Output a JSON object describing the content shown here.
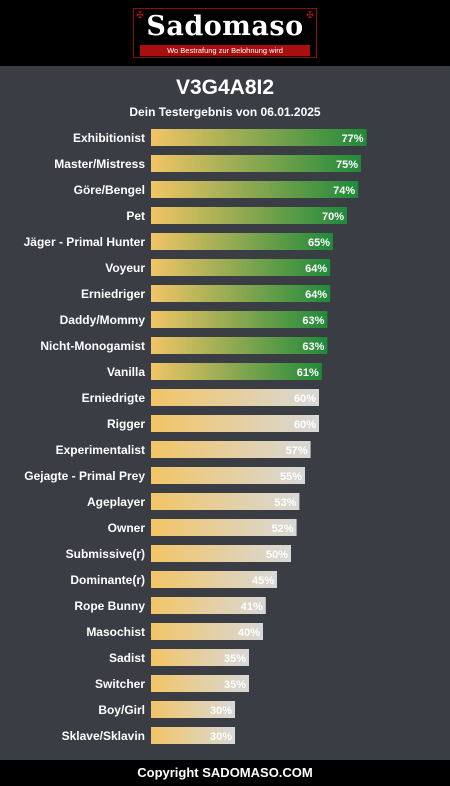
{
  "header": {
    "logo_text": "Sadomaso",
    "logo_tagline": "Wo Bestrafung zur Belohnung wird",
    "logo_icon": "cross-ornament-icon"
  },
  "title": "V3G4A8I2",
  "subtitle": "Dein Testergebnis von 06.01.2025",
  "footer": {
    "text": "Copyright SADOMASO.COM"
  },
  "colors": {
    "background": "#3a3d43",
    "bar_start": "#f2c566",
    "high_end": "#1f8a3a",
    "low_end": "#d8d8d8",
    "label_high": "#ffffff",
    "label_low": "#ffffff"
  },
  "chart_data": {
    "type": "bar",
    "orientation": "horizontal",
    "value_suffix": "%",
    "xlim": [
      0,
      100
    ],
    "grid": false,
    "highlight_threshold": 61,
    "categories": [
      "Exhibitionist",
      "Master/Mistress",
      "Göre/Bengel",
      "Pet",
      "Jäger - Primal Hunter",
      "Voyeur",
      "Erniedriger",
      "Daddy/Mommy",
      "Nicht-Monogamist",
      "Vanilla",
      "Erniedrigte",
      "Rigger",
      "Experimentalist",
      "Gejagte - Primal Prey",
      "Ageplayer",
      "Owner",
      "Submissive(r)",
      "Dominante(r)",
      "Rope Bunny",
      "Masochist",
      "Sadist",
      "Switcher",
      "Boy/Girl",
      "Sklave/Sklavin"
    ],
    "values": [
      77,
      75,
      74,
      70,
      65,
      64,
      64,
      63,
      63,
      61,
      60,
      60,
      57,
      55,
      53,
      52,
      50,
      45,
      41,
      40,
      35,
      35,
      30,
      30
    ]
  }
}
